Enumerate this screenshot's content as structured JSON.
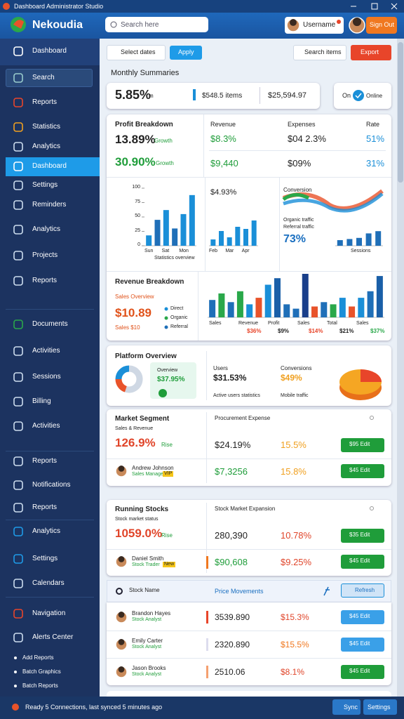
{
  "window": {
    "title": "Dashboard Administrator Studio"
  },
  "header": {
    "logo": "Nekoudia",
    "search": "Search here",
    "user": "Username",
    "button": "Sign Out"
  },
  "sidebar": {
    "items": [
      "Dashboard",
      "Search",
      "Reports",
      "Statistics",
      "Analytics",
      "Dashboard",
      "Settings",
      "Reminders",
      "Analytics",
      "Projects",
      "Reports",
      "Documents",
      "Activities",
      "Sessions",
      "Billing",
      "Activities",
      "Reports",
      "Notifications",
      "Reports",
      "Analytics",
      "Settings",
      "Calendars",
      "Navigation",
      "Alerts Center"
    ],
    "subitems": [
      "Add Reports",
      "Batch Graphics",
      "Batch Reports"
    ]
  },
  "toolbar": {
    "filter": "Select dates",
    "apply": "Apply",
    "search": "Search items",
    "export": "Export"
  },
  "summary": {
    "heading": "Monthly Summaries",
    "value": "5.85%",
    "unit": "m",
    "middle": "$548.5 items",
    "right": "$25,594.97",
    "status": "On",
    "status_label": "Online"
  },
  "kpis": {
    "title": "Profit Breakdown",
    "main": "13.89%",
    "main_tag": "Growth",
    "second": "30.90%",
    "second_tag": "Growth",
    "columns": [
      {
        "label": "Revenue",
        "a": "$8.3%",
        "b": "$9,440"
      },
      {
        "label": "Expenses",
        "a": "$04 2.3%",
        "b": "$09%"
      },
      {
        "label": "Rate",
        "a": "51%",
        "b": "31%"
      }
    ]
  },
  "chart_a": {
    "ylim": [
      0,
      100
    ],
    "yticks": [
      100,
      75,
      50,
      25,
      0
    ],
    "values": [
      18,
      45,
      62,
      30,
      55,
      88
    ],
    "categories": [
      "Sun",
      null,
      "Sat",
      null,
      "Mon",
      null
    ],
    "caption": "Statistics overview"
  },
  "chart_b": {
    "headline": "$4.93%",
    "ylim": [
      0,
      100
    ],
    "values": [
      15,
      35,
      20,
      45,
      40,
      60
    ],
    "categories": [
      "Feb",
      null,
      "Mar",
      null,
      "Apr",
      null
    ]
  },
  "chart_c": {
    "title": "Conversion",
    "legend": [
      "Organic traffic",
      "Referral traffic"
    ],
    "value": "73%",
    "ylim": [
      0,
      100
    ],
    "values": [
      25,
      30,
      35,
      55,
      65
    ],
    "categories": [
      "Sessions"
    ]
  },
  "breakdown": {
    "title": "Revenue Breakdown",
    "subtitle": "Sales Overview",
    "value": "$10.89",
    "tag": "Sales $10",
    "legend": [
      "Direct",
      "Organic",
      "Referral"
    ],
    "legend_colors": [
      "#1a8fd8",
      "#2aa84a",
      "#1f6fb8"
    ]
  },
  "chart_d": {
    "ylim": [
      0,
      100
    ],
    "values": [
      40,
      55,
      35,
      60,
      30,
      45,
      75,
      90,
      30,
      20,
      100,
      25,
      35,
      30,
      45,
      25,
      45,
      60,
      95
    ],
    "colors": [
      "#1f6fb8",
      "#2aa84a",
      "#1f6fb8",
      "#2aa84a",
      "#1a8fd8",
      "#e8532a",
      "#1a8fd8",
      "#1a5fa8",
      "#1f6fb8",
      "#1f6fb8",
      "#1a3f8a",
      "#e8532a",
      "#1f6fb8",
      "#2aa84a",
      "#1a8fd8",
      "#e8532a",
      "#1a8fd8",
      "#1f6fb8",
      "#1a5fa8"
    ],
    "categories": [
      "Sales",
      "Revenue",
      "Profit",
      "Sales",
      "Total",
      "Sales"
    ],
    "notes": [
      "$36%",
      "$9%",
      "$14%",
      "$21%",
      "$37%"
    ]
  },
  "platform": {
    "title": "Platform Overview",
    "donut": [
      55,
      20,
      25
    ],
    "card_label": "Overview",
    "card_value": "$37.95%",
    "mid_label": "Users",
    "mid_value": "$31.53%",
    "mid_foot": "Active users statistics",
    "right_label": "Conversions",
    "right_value": "$49%",
    "right_foot": "Mobile traffic"
  },
  "market": {
    "title": "Market Segment",
    "subtitle": "Sales & Revenue",
    "header": "Procurement Expense",
    "main": "126.9%",
    "main_tag": "Rise",
    "main_price": "$24.19%",
    "main_pct": "15.5%",
    "main_btn": "$95 Edit",
    "row": {
      "name": "Andrew Johnson",
      "sub": "Sales Manager",
      "tag": "VIP",
      "price": "$7,3256",
      "pct": "15.8%",
      "btn": "$45 Edit"
    }
  },
  "stocks": {
    "title": "Running Stocks",
    "subtitle": "Stock market status",
    "header": "Stock Market Expansion",
    "main": "1059.0%",
    "main_tag": "Rise",
    "main_price": "280,390",
    "main_pct": "10.78%",
    "main_btn": "$35 Edit",
    "row": {
      "name": "Daniel Smith",
      "sub": "Stock Trader",
      "tag": "New",
      "price": "$90,608",
      "pct": "$9.25%",
      "btn": "$45 Edit"
    }
  },
  "table": {
    "columns": [
      "Stock Name",
      "Price Movements"
    ],
    "refresh": "Refresh",
    "rows": [
      {
        "name": "Brandon Hayes",
        "sub": "Stock Analyst",
        "price": "3539.890",
        "pct": "$15.3%",
        "btn": "$45 Edit"
      },
      {
        "name": "Emily Carter",
        "sub": "Stock Analyst",
        "price": "2320.890",
        "pct": "$15.5%",
        "btn": "$45 Edit"
      },
      {
        "name": "Jason Brooks",
        "sub": "Stock Analyst",
        "price": "2510.06",
        "pct": "$8.1%",
        "btn": "$45 Edit"
      }
    ]
  },
  "status": {
    "left": "Ready 5 Connections, last synced 5 minutes ago",
    "sync": "Sync",
    "settings": "Settings"
  }
}
